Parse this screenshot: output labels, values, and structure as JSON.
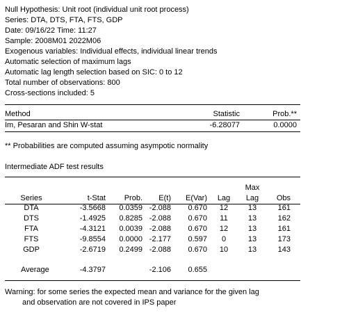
{
  "header_lines": [
    "Null Hypothesis: Unit root (individual unit root process)",
    "Series: DTA, DTS, FTA, FTS, GDP",
    "Date: 09/16/22   Time: 11:27",
    "Sample: 2008M01 2022M06",
    "Exogenous variables: Individual effects, individual linear trends",
    "Automatic selection of maximum lags",
    "Automatic lag length selection based on SIC: 0 to 12",
    "Total number of observations: 800",
    "Cross-sections included: 5"
  ],
  "stat_table": {
    "headers": {
      "method": "Method",
      "statistic": "Statistic",
      "prob": "Prob.**"
    },
    "row": {
      "method": "Im, Pesaran and Shin W-stat",
      "statistic": "-6.28077",
      "prob": "0.0000"
    }
  },
  "footnote": "** Probabilities are computed assuming asympotic normality",
  "section_title": "Intermediate ADF test results",
  "adf_table": {
    "headers": {
      "series": "Series",
      "tstat": "t-Stat",
      "prob": "Prob.",
      "et": "E(t)",
      "evar": "E(Var)",
      "lag": "Lag",
      "maxlag_top": "Max",
      "maxlag_bottom": "Lag",
      "obs": "Obs"
    },
    "rows": [
      {
        "series": "DTA",
        "tstat": "-3.5668",
        "prob": "0.0359",
        "et": "-2.088",
        "evar": "0.670",
        "lag": "12",
        "maxlag": "13",
        "obs": "161"
      },
      {
        "series": "DTS",
        "tstat": "-1.4925",
        "prob": "0.8285",
        "et": "-2.088",
        "evar": "0.670",
        "lag": "11",
        "maxlag": "13",
        "obs": "162"
      },
      {
        "series": "FTA",
        "tstat": "-4.3121",
        "prob": "0.0039",
        "et": "-2.088",
        "evar": "0.670",
        "lag": "12",
        "maxlag": "13",
        "obs": "161"
      },
      {
        "series": "FTS",
        "tstat": "-9.8554",
        "prob": "0.0000",
        "et": "-2.177",
        "evar": "0.597",
        "lag": "0",
        "maxlag": "13",
        "obs": "173"
      },
      {
        "series": "GDP",
        "tstat": "-2.6719",
        "prob": "0.2499",
        "et": "-2.088",
        "evar": "0.670",
        "lag": "10",
        "maxlag": "13",
        "obs": "143"
      }
    ],
    "average": {
      "label": "Average",
      "tstat": "-4.3797",
      "et": "-2.106",
      "evar": "0.655"
    }
  },
  "warning_lines": [
    "Warning: for some series the expected mean and variance for the given lag",
    "and observation are not covered in IPS paper"
  ]
}
